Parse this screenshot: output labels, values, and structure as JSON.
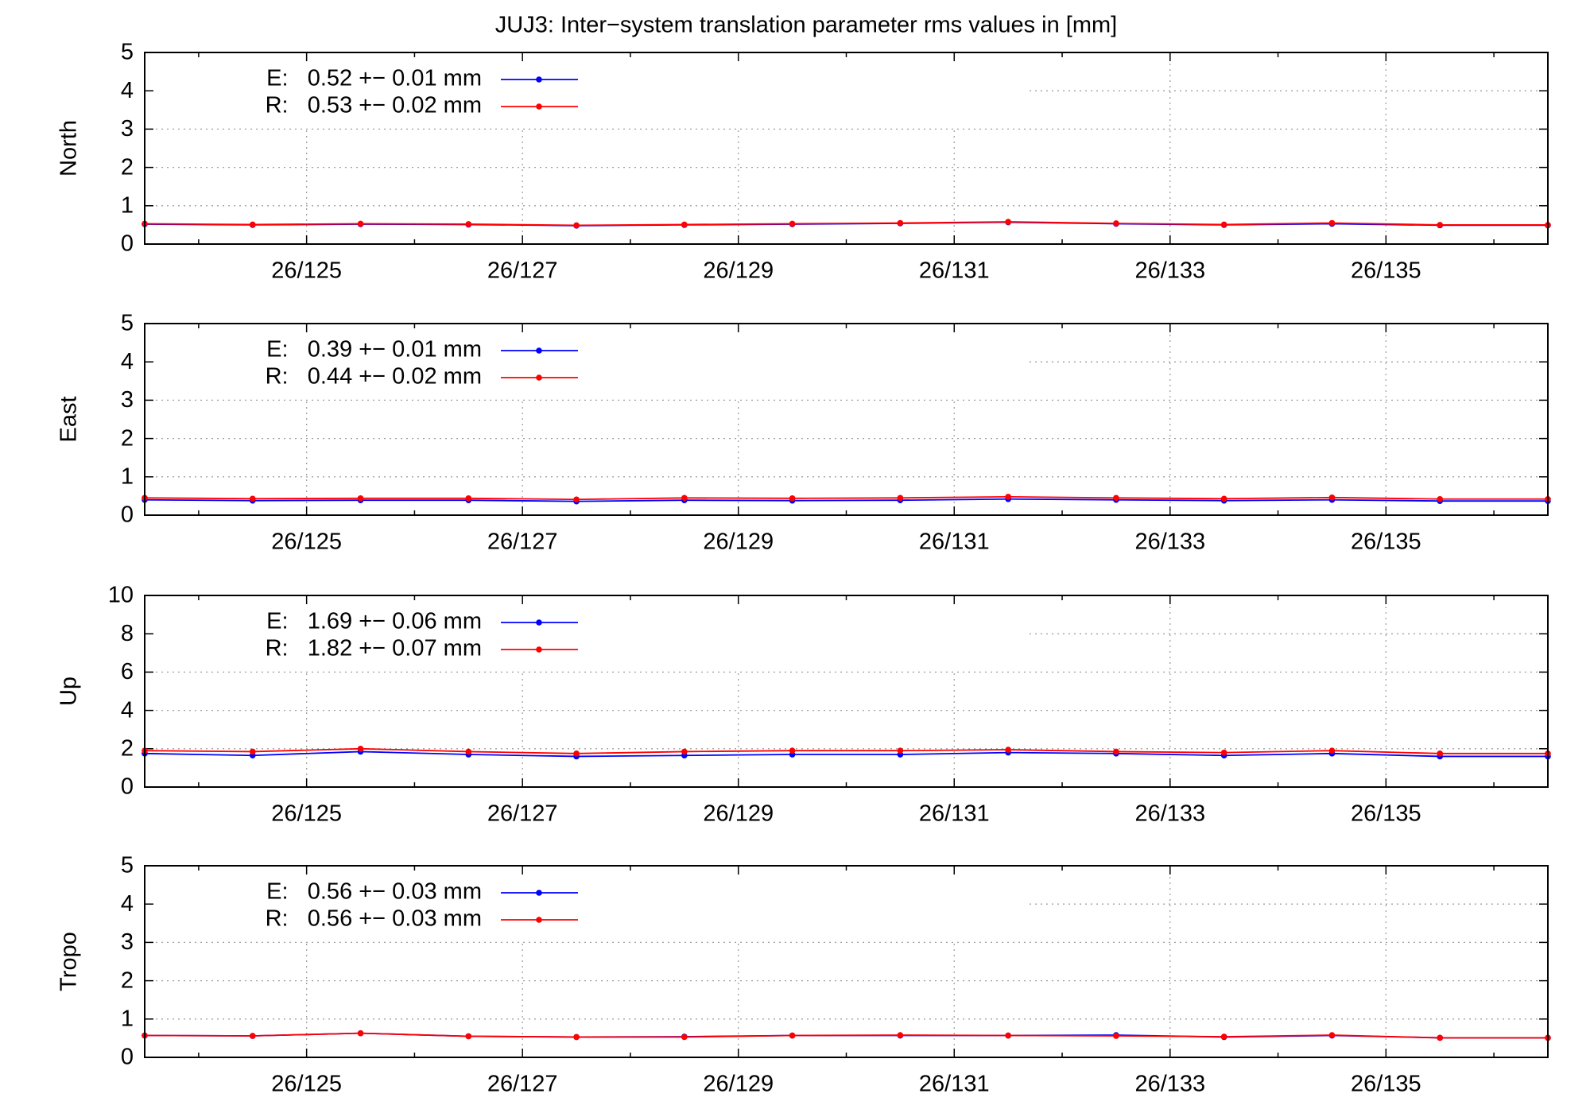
{
  "chart_data": [
    {
      "type": "line",
      "title": "JUJ3: Inter−system translation parameter rms values in [mm]",
      "ylabel": "North",
      "x": [
        123.5,
        124.5,
        125.5,
        126.5,
        127.5,
        128.5,
        129.5,
        130.5,
        131.5,
        132.5,
        133.5,
        134.5,
        135.5,
        136.5
      ],
      "series": [
        {
          "name": "E:   0.52 +− 0.01 mm",
          "color": "#0000ff",
          "values": [
            0.52,
            0.5,
            0.52,
            0.51,
            0.48,
            0.5,
            0.52,
            0.54,
            0.57,
            0.53,
            0.5,
            0.53,
            0.49,
            0.49
          ]
        },
        {
          "name": "R:   0.53 +− 0.02 mm",
          "color": "#ff0000",
          "values": [
            0.53,
            0.51,
            0.53,
            0.52,
            0.49,
            0.51,
            0.53,
            0.55,
            0.58,
            0.54,
            0.51,
            0.55,
            0.5,
            0.5
          ]
        }
      ],
      "xlim": [
        123.5,
        136.5
      ],
      "xticks": [
        {
          "value": 125,
          "label": "26/125"
        },
        {
          "value": 127,
          "label": "26/127"
        },
        {
          "value": 129,
          "label": "26/129"
        },
        {
          "value": 131,
          "label": "26/131"
        },
        {
          "value": 133,
          "label": "26/133"
        },
        {
          "value": 135,
          "label": "26/135"
        }
      ],
      "xminorticks": [
        124,
        126,
        128,
        130,
        132,
        134,
        136
      ],
      "ylim": [
        0,
        5
      ],
      "yticks": [
        0,
        1,
        2,
        3,
        4,
        5
      ],
      "grid": true
    },
    {
      "type": "line",
      "ylabel": "East",
      "x": [
        123.5,
        124.5,
        125.5,
        126.5,
        127.5,
        128.5,
        129.5,
        130.5,
        131.5,
        132.5,
        133.5,
        134.5,
        135.5,
        136.5
      ],
      "series": [
        {
          "name": "E:   0.39 +− 0.01 mm",
          "color": "#0000ff",
          "values": [
            0.4,
            0.38,
            0.39,
            0.39,
            0.36,
            0.39,
            0.38,
            0.39,
            0.42,
            0.4,
            0.38,
            0.4,
            0.37,
            0.37
          ]
        },
        {
          "name": "R:   0.44 +− 0.02 mm",
          "color": "#ff0000",
          "values": [
            0.45,
            0.43,
            0.44,
            0.44,
            0.41,
            0.45,
            0.44,
            0.45,
            0.48,
            0.45,
            0.43,
            0.46,
            0.42,
            0.42
          ]
        }
      ],
      "xlim": [
        123.5,
        136.5
      ],
      "xticks": [
        {
          "value": 125,
          "label": "26/125"
        },
        {
          "value": 127,
          "label": "26/127"
        },
        {
          "value": 129,
          "label": "26/129"
        },
        {
          "value": 131,
          "label": "26/131"
        },
        {
          "value": 133,
          "label": "26/133"
        },
        {
          "value": 135,
          "label": "26/135"
        }
      ],
      "xminorticks": [
        124,
        126,
        128,
        130,
        132,
        134,
        136
      ],
      "ylim": [
        0,
        5
      ],
      "yticks": [
        0,
        1,
        2,
        3,
        4,
        5
      ],
      "grid": true
    },
    {
      "type": "line",
      "ylabel": "Up",
      "x": [
        123.5,
        124.5,
        125.5,
        126.5,
        127.5,
        128.5,
        129.5,
        130.5,
        131.5,
        132.5,
        133.5,
        134.5,
        135.5,
        136.5
      ],
      "series": [
        {
          "name": "E:   1.69 +− 0.06 mm",
          "color": "#0000ff",
          "values": [
            1.75,
            1.65,
            1.85,
            1.7,
            1.6,
            1.65,
            1.7,
            1.7,
            1.8,
            1.75,
            1.65,
            1.75,
            1.6,
            1.6
          ]
        },
        {
          "name": "R:   1.82 +− 0.07 mm",
          "color": "#ff0000",
          "values": [
            1.9,
            1.85,
            2.0,
            1.85,
            1.75,
            1.85,
            1.9,
            1.9,
            1.95,
            1.85,
            1.8,
            1.9,
            1.75,
            1.75
          ]
        }
      ],
      "xlim": [
        123.5,
        136.5
      ],
      "xticks": [
        {
          "value": 125,
          "label": "26/125"
        },
        {
          "value": 127,
          "label": "26/127"
        },
        {
          "value": 129,
          "label": "26/129"
        },
        {
          "value": 131,
          "label": "26/131"
        },
        {
          "value": 133,
          "label": "26/133"
        },
        {
          "value": 135,
          "label": "26/135"
        }
      ],
      "xminorticks": [
        124,
        126,
        128,
        130,
        132,
        134,
        136
      ],
      "ylim": [
        0,
        10
      ],
      "yticks": [
        0,
        2,
        4,
        6,
        8,
        10
      ],
      "grid": true
    },
    {
      "type": "line",
      "ylabel": "Tropo",
      "x": [
        123.5,
        124.5,
        125.5,
        126.5,
        127.5,
        128.5,
        129.5,
        130.5,
        131.5,
        132.5,
        133.5,
        134.5,
        135.5,
        136.5
      ],
      "series": [
        {
          "name": "E:   0.56 +− 0.03 mm",
          "color": "#0000ff",
          "values": [
            0.57,
            0.56,
            0.63,
            0.55,
            0.53,
            0.54,
            0.57,
            0.57,
            0.57,
            0.58,
            0.53,
            0.57,
            0.51,
            0.51
          ]
        },
        {
          "name": "R:   0.56 +− 0.03 mm",
          "color": "#ff0000",
          "values": [
            0.57,
            0.56,
            0.63,
            0.55,
            0.53,
            0.53,
            0.57,
            0.58,
            0.57,
            0.56,
            0.54,
            0.58,
            0.51,
            0.51
          ]
        }
      ],
      "xlim": [
        123.5,
        136.5
      ],
      "xticks": [
        {
          "value": 125,
          "label": "26/125"
        },
        {
          "value": 127,
          "label": "26/127"
        },
        {
          "value": 129,
          "label": "26/129"
        },
        {
          "value": 131,
          "label": "26/131"
        },
        {
          "value": 133,
          "label": "26/133"
        },
        {
          "value": 135,
          "label": "26/135"
        }
      ],
      "xminorticks": [
        124,
        126,
        128,
        130,
        132,
        134,
        136
      ],
      "ylim": [
        0,
        5
      ],
      "yticks": [
        0,
        1,
        2,
        3,
        4,
        5
      ],
      "grid": true
    }
  ]
}
